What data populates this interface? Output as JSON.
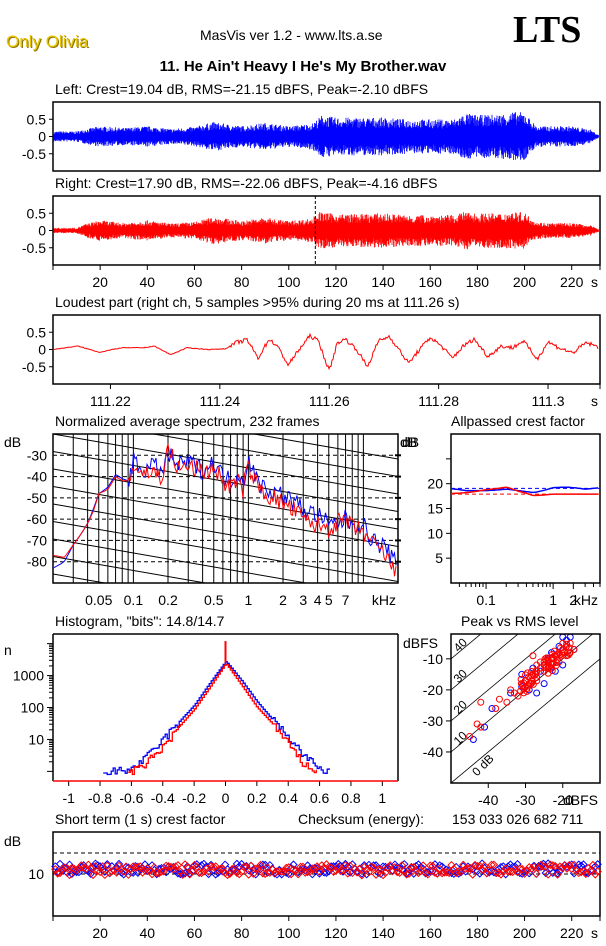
{
  "header": {
    "brand": "Only Olivia",
    "app_version": "MasVis ver 1.2 - www.lts.a.se",
    "logo": "LTS",
    "song_title": "11. He Ain't Heavy I He's My Brother.wav"
  },
  "colors": {
    "left": "#0000ff",
    "right": "#ff0000",
    "axis": "#000000",
    "brand": "#e8c400"
  },
  "chart_data": [
    {
      "id": "left-waveform",
      "type": "area",
      "title": "Left: Crest=19.04 dB, RMS=-21.15 dBFS, Peak=-2.10 dBFS",
      "ylim": [
        -1,
        1
      ],
      "yticks": [
        "0.5",
        "0",
        "-0.5"
      ],
      "xlim": [
        0,
        232
      ],
      "x": [
        0,
        10,
        14,
        20,
        30,
        40,
        50,
        60,
        68,
        80,
        90,
        100,
        110,
        114,
        120,
        130,
        140,
        150,
        160,
        170,
        175,
        180,
        190,
        195,
        200,
        205,
        210,
        220,
        228,
        232
      ],
      "envelope": [
        0.15,
        0.15,
        0.22,
        0.3,
        0.25,
        0.3,
        0.22,
        0.28,
        0.42,
        0.3,
        0.4,
        0.3,
        0.38,
        0.62,
        0.55,
        0.55,
        0.55,
        0.5,
        0.5,
        0.5,
        0.68,
        0.62,
        0.65,
        0.72,
        0.7,
        0.3,
        0.3,
        0.3,
        0.2,
        0.02
      ]
    },
    {
      "id": "right-waveform",
      "type": "area",
      "title": "Right: Crest=17.90 dB, RMS=-22.06 dBFS, Peak=-4.16 dBFS",
      "ylim": [
        -1,
        1
      ],
      "yticks": [
        "0.5",
        "0",
        "-0.5"
      ],
      "xlim": [
        0,
        232
      ],
      "xticks": [
        "20",
        "40",
        "60",
        "80",
        "100",
        "120",
        "140",
        "160",
        "180",
        "200",
        "220"
      ],
      "x_unit": "s",
      "loudest_marker_s": 111.26,
      "x": [
        0,
        10,
        14,
        20,
        30,
        40,
        50,
        60,
        68,
        80,
        90,
        100,
        110,
        112,
        120,
        130,
        140,
        150,
        160,
        170,
        175,
        180,
        190,
        195,
        200,
        205,
        210,
        220,
        228,
        232
      ],
      "envelope": [
        0.08,
        0.08,
        0.2,
        0.3,
        0.22,
        0.3,
        0.2,
        0.25,
        0.4,
        0.28,
        0.38,
        0.28,
        0.35,
        0.55,
        0.48,
        0.48,
        0.5,
        0.45,
        0.45,
        0.45,
        0.55,
        0.5,
        0.5,
        0.55,
        0.52,
        0.25,
        0.22,
        0.22,
        0.15,
        0.02
      ]
    },
    {
      "id": "loudest-part",
      "type": "line",
      "title": "Loudest part (right ch, 5 samples >95% during 20 ms at 111.26 s)",
      "ylim": [
        -1,
        1
      ],
      "yticks": [
        "0.5",
        "0",
        "-0.5"
      ],
      "xlim": [
        111.2095,
        111.3095
      ],
      "xticks": [
        "111.22",
        "111.24",
        "111.26",
        "111.28",
        "111.3"
      ],
      "x_unit": "s",
      "x": [
        111.2095,
        111.214,
        111.218,
        111.222,
        111.226,
        111.228,
        111.231,
        111.234,
        111.238,
        111.241,
        111.243,
        111.245,
        111.247,
        111.249,
        111.2505,
        111.2525,
        111.2545,
        111.2565,
        111.258,
        111.26,
        111.2615,
        111.263,
        111.265,
        111.267,
        111.269,
        111.271,
        111.2725,
        111.2745,
        111.2765,
        111.2785,
        111.2805,
        111.2825,
        111.2845,
        111.2865,
        111.289,
        111.2915,
        111.2935,
        111.2955,
        111.298,
        111.3,
        111.302,
        111.3045,
        111.307,
        111.3095
      ],
      "y": [
        0.0,
        0.1,
        -0.08,
        0.05,
        0.05,
        0.1,
        -0.15,
        0.05,
        0.0,
        0.02,
        0.2,
        0.28,
        -0.25,
        0.3,
        0.1,
        -0.45,
        0.0,
        0.4,
        0.25,
        -0.62,
        0.2,
        0.3,
        0.0,
        -0.5,
        0.25,
        0.38,
        0.05,
        -0.4,
        0.0,
        0.35,
        0.1,
        -0.25,
        0.1,
        0.3,
        -0.2,
        0.1,
        0.05,
        0.25,
        -0.28,
        0.22,
        0.05,
        -0.1,
        0.2,
        0.05
      ]
    },
    {
      "id": "average-spectrum",
      "type": "line",
      "title": "Normalized average spectrum, 232 frames",
      "ylabel": "dB",
      "ylim": [
        -90,
        -20
      ],
      "yticks": [
        -30,
        -40,
        -50,
        -60,
        -70,
        -80
      ],
      "xscale": "log",
      "xlim": [
        0.02,
        20
      ],
      "xticks": [
        {
          "v": 0.05,
          "label": "0.05"
        },
        {
          "v": 0.1,
          "label": "0.1"
        },
        {
          "v": 0.2,
          "label": "0.2"
        },
        {
          "v": 0.5,
          "label": "0.5"
        },
        {
          "v": 1,
          "label": "1"
        },
        {
          "v": 2,
          "label": "2"
        },
        {
          "v": 3,
          "label": "3"
        },
        {
          "v": 4,
          "label": "4"
        },
        {
          "v": 5,
          "label": "5"
        },
        {
          "v": 7,
          "label": "7"
        }
      ],
      "x_unit": "kHz",
      "grid": true,
      "series": [
        {
          "name": "left",
          "x": [
            0.02,
            0.025,
            0.03,
            0.04,
            0.045,
            0.05,
            0.06,
            0.07,
            0.08,
            0.09,
            0.1,
            0.12,
            0.15,
            0.18,
            0.2,
            0.25,
            0.3,
            0.4,
            0.5,
            0.6,
            0.7,
            0.8,
            0.9,
            1.0,
            1.2,
            1.5,
            2,
            2.5,
            3,
            3.5,
            4,
            5,
            6,
            7,
            8,
            10,
            12,
            15,
            20
          ],
          "y": [
            -83,
            -80,
            -72,
            -62,
            -55,
            -48,
            -45,
            -39,
            -41,
            -42,
            -33,
            -37,
            -35,
            -38,
            -30,
            -35,
            -33,
            -37,
            -33,
            -40,
            -42,
            -38,
            -43,
            -31,
            -43,
            -46,
            -49,
            -52,
            -55,
            -57,
            -58,
            -63,
            -62,
            -60,
            -62,
            -63,
            -70,
            -73,
            -83
          ]
        },
        {
          "name": "right",
          "x": [
            0.02,
            0.025,
            0.03,
            0.04,
            0.045,
            0.05,
            0.06,
            0.07,
            0.08,
            0.09,
            0.1,
            0.12,
            0.15,
            0.18,
            0.2,
            0.25,
            0.3,
            0.4,
            0.5,
            0.6,
            0.7,
            0.8,
            0.9,
            1.0,
            1.2,
            1.5,
            2,
            2.5,
            3,
            3.5,
            4,
            5,
            6,
            7,
            8,
            10,
            12,
            15,
            20
          ],
          "y": [
            -77,
            -78,
            -72,
            -62,
            -56,
            -48,
            -46,
            -40,
            -42,
            -42,
            -35,
            -38,
            -38,
            -40,
            -27,
            -37,
            -35,
            -38,
            -36,
            -42,
            -45,
            -42,
            -46,
            -35,
            -45,
            -49,
            -53,
            -56,
            -60,
            -62,
            -63,
            -64,
            -62,
            -60,
            -64,
            -66,
            -72,
            -76,
            -88
          ]
        }
      ]
    },
    {
      "id": "allpassed-crest",
      "type": "line",
      "title": "Allpassed crest factor",
      "ylabel": "dB",
      "ylim": [
        0,
        30
      ],
      "yticks": [
        20,
        15,
        10,
        5
      ],
      "xscale": "log",
      "xlim": [
        0.03,
        5
      ],
      "xticks": [
        {
          "v": 0.1,
          "label": "0.1"
        },
        {
          "v": 1,
          "label": "1"
        },
        {
          "v": 2,
          "label": "2"
        }
      ],
      "x_unit": "kHz",
      "series": [
        {
          "name": "left",
          "reference": 19.04,
          "x": [
            0.03,
            0.05,
            0.1,
            0.2,
            0.3,
            0.5,
            0.7,
            1,
            1.5,
            2,
            3,
            5
          ],
          "y": [
            19,
            18.6,
            18.6,
            18.9,
            18.6,
            18.2,
            18.6,
            19.2,
            19.3,
            19.2,
            18.9,
            19.2
          ]
        },
        {
          "name": "right",
          "reference": 17.9,
          "x": [
            0.03,
            0.05,
            0.1,
            0.2,
            0.3,
            0.5,
            0.7,
            1,
            1.5,
            2,
            3,
            5
          ],
          "y": [
            18,
            18.2,
            18.8,
            19.3,
            18.5,
            17.6,
            17.7,
            17.9,
            17.9,
            17.9,
            17.9,
            17.9
          ]
        }
      ]
    },
    {
      "id": "histogram",
      "type": "line",
      "title": "Histogram, \"bits\": 14.8/14.7",
      "ylabel": "n",
      "yscale": "log",
      "ylim": [
        0.5,
        20000
      ],
      "yticks": [
        {
          "v": 1000,
          "label": "1000"
        },
        {
          "v": 100,
          "label": "100"
        },
        {
          "v": 10,
          "label": "10"
        }
      ],
      "xlim": [
        -1.1,
        1.1
      ],
      "xticks": [
        "-1",
        "-0.8",
        "-0.6",
        "-0.4",
        "-0.2",
        "0",
        "0.2",
        "0.4",
        "0.6",
        "0.8",
        "1"
      ],
      "series": [
        {
          "name": "left",
          "x": [
            -0.78,
            -0.7,
            -0.6,
            -0.5,
            -0.4,
            -0.3,
            -0.2,
            -0.1,
            0,
            0.1,
            0.2,
            0.3,
            0.4,
            0.5,
            0.6,
            0.67
          ],
          "y": [
            1,
            1,
            1.2,
            3,
            10,
            35,
            120,
            600,
            2800,
            700,
            150,
            40,
            12,
            3,
            1.2,
            1
          ]
        },
        {
          "name": "right",
          "x": [
            -0.62,
            -0.55,
            -0.5,
            -0.4,
            -0.3,
            -0.2,
            -0.1,
            0,
            0.1,
            0.2,
            0.3,
            0.4,
            0.48,
            0.55,
            0.58
          ],
          "y": [
            1,
            1.2,
            2,
            6,
            25,
            90,
            450,
            2400,
            500,
            100,
            30,
            7,
            2,
            1.2,
            1
          ]
        }
      ],
      "peak_at_zero": 12000
    },
    {
      "id": "peak-vs-rms",
      "type": "scatter",
      "title": "Peak vs RMS level",
      "ylabel": "dBFS",
      "xlabel": "dBFS",
      "xlim": [
        -50,
        -10
      ],
      "ylim": [
        -50,
        -2
      ],
      "xticks": [
        -40,
        -30,
        -20
      ],
      "yticks": [
        -10,
        -20,
        -30,
        -40
      ],
      "diagonal_labels": [
        "0 dB",
        "10",
        "20",
        "30",
        "40"
      ],
      "series": [
        {
          "name": "left",
          "points": [
            [
              -44,
              -36
            ],
            [
              -41,
              -32
            ],
            [
              -39,
              -26
            ],
            [
              -34,
              -21
            ],
            [
              -31,
              -19
            ],
            [
              -31,
              -15
            ],
            [
              -30,
              -17
            ],
            [
              -28,
              -13
            ],
            [
              -27,
              -16
            ],
            [
              -26,
              -14
            ],
            [
              -25,
              -12
            ],
            [
              -24,
              -10
            ],
            [
              -23,
              -8
            ],
            [
              -22,
              -9
            ],
            [
              -21,
              -6
            ],
            [
              -20,
              -3
            ],
            [
              -19,
              -4
            ],
            [
              -18,
              -3
            ],
            [
              -20,
              -12
            ],
            [
              -17,
              -7
            ],
            [
              -22,
              -14
            ],
            [
              -25,
              -18
            ],
            [
              -27,
              -21
            ],
            [
              -29,
              -20
            ]
          ]
        },
        {
          "name": "right",
          "points": [
            [
              -45,
              -35
            ],
            [
              -43,
              -31
            ],
            [
              -42,
              -32
            ],
            [
              -42,
              -24
            ],
            [
              -38,
              -26
            ],
            [
              -37,
              -23
            ],
            [
              -35,
              -24
            ],
            [
              -34,
              -20
            ],
            [
              -33,
              -21
            ],
            [
              -32,
              -22
            ],
            [
              -31,
              -18
            ],
            [
              -30,
              -17
            ],
            [
              -29,
              -18
            ],
            [
              -28,
              -15
            ],
            [
              -27,
              -16
            ],
            [
              -27,
              -12
            ],
            [
              -26,
              -13
            ],
            [
              -25,
              -14
            ],
            [
              -25,
              -11
            ],
            [
              -24,
              -12
            ],
            [
              -23,
              -10
            ],
            [
              -23,
              -13
            ],
            [
              -22,
              -9
            ],
            [
              -21,
              -8
            ],
            [
              -21,
              -11
            ],
            [
              -20,
              -7
            ],
            [
              -20,
              -5
            ],
            [
              -19,
              -9
            ],
            [
              -19,
              -6
            ],
            [
              -18,
              -8
            ],
            [
              -18,
              -5
            ],
            [
              -17,
              -7
            ],
            [
              -28,
              -9
            ],
            [
              -26,
              -11
            ]
          ]
        }
      ]
    },
    {
      "id": "short-term-crest",
      "type": "scatter",
      "title": "Short term (1 s) crest factor",
      "ylabel": "dB",
      "ylim": [
        0,
        20
      ],
      "yticks": [
        {
          "v": 10,
          "label": "10"
        }
      ],
      "dashed_levels": [
        10,
        15
      ],
      "xlim": [
        0,
        232
      ],
      "xticks": [
        "20",
        "40",
        "60",
        "80",
        "100",
        "120",
        "140",
        "160",
        "180",
        "200",
        "220"
      ],
      "x_unit": "s",
      "series": [
        {
          "name": "left",
          "y_base": 11.2
        },
        {
          "name": "right",
          "y_base": 11.0
        }
      ]
    }
  ],
  "checksum": {
    "label": "Checksum (energy):",
    "value": "153 033 026 682 711"
  }
}
